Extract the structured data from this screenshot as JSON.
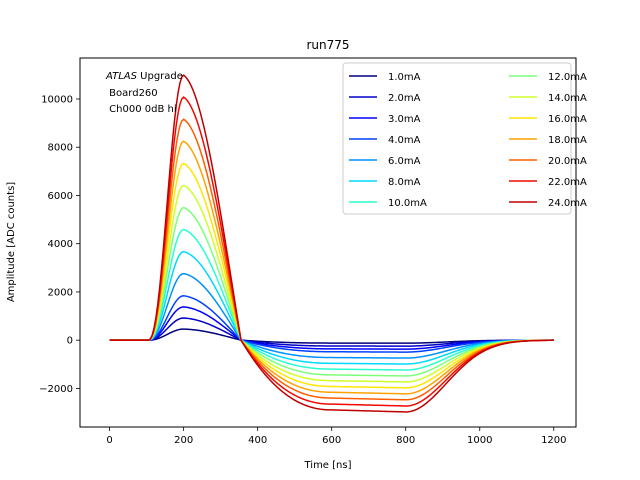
{
  "chart_data": {
    "type": "line",
    "title": "run775",
    "xlabel": "Time [ns]",
    "ylabel": "Amplitude [ADC counts]",
    "xlim": [
      -80,
      1260
    ],
    "ylim": [
      -3600,
      11700
    ],
    "xticks": [
      0,
      200,
      400,
      600,
      800,
      1000,
      1200
    ],
    "yticks": [
      -2000,
      0,
      2000,
      4000,
      6000,
      8000,
      10000
    ],
    "grid": false,
    "legend_position": "top-right",
    "legend_columns": 2,
    "annotation": {
      "italic": "ATLAS",
      "line1_rest": " Upgrade",
      "line2": " Board260",
      "line3": " Ch000 0dB hi"
    },
    "colormap": "jet",
    "series": [
      {
        "name": "1.0mA",
        "color": "#00007f",
        "peak": 460,
        "undershoot": -120
      },
      {
        "name": "2.0mA",
        "color": "#0000c8",
        "peak": 920,
        "undershoot": -240
      },
      {
        "name": "3.0mA",
        "color": "#0000ff",
        "peak": 1380,
        "undershoot": -360
      },
      {
        "name": "4.0mA",
        "color": "#0040ff",
        "peak": 1840,
        "undershoot": -480
      },
      {
        "name": "6.0mA",
        "color": "#0090ff",
        "peak": 2760,
        "undershoot": -720
      },
      {
        "name": "8.0mA",
        "color": "#00d8ff",
        "peak": 3670,
        "undershoot": -960
      },
      {
        "name": "10.0mA",
        "color": "#29ffce",
        "peak": 4590,
        "undershoot": -1200
      },
      {
        "name": "12.0mA",
        "color": "#7cff7a",
        "peak": 5500,
        "undershoot": -1440
      },
      {
        "name": "14.0mA",
        "color": "#ceff29",
        "peak": 6420,
        "undershoot": -1680
      },
      {
        "name": "16.0mA",
        "color": "#ffe600",
        "peak": 7330,
        "undershoot": -1920
      },
      {
        "name": "18.0mA",
        "color": "#ffa200",
        "peak": 8250,
        "undershoot": -2160
      },
      {
        "name": "20.0mA",
        "color": "#ff5e00",
        "peak": 9160,
        "undershoot": -2400
      },
      {
        "name": "22.0mA",
        "color": "#f10800",
        "peak": 10080,
        "undershoot": -2650
      },
      {
        "name": "24.0mA",
        "color": "#c00000",
        "peak": 10990,
        "undershoot": -2890
      }
    ]
  }
}
